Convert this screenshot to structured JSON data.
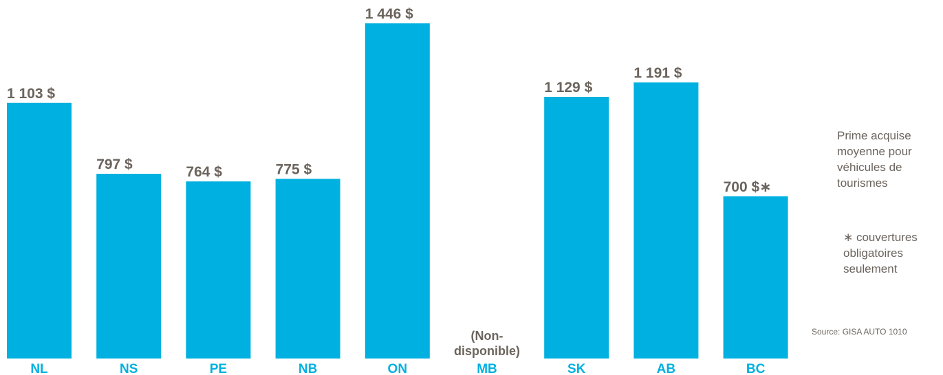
{
  "chart_data": {
    "type": "bar",
    "categories": [
      "NL",
      "NS",
      "PE",
      "NB",
      "ON",
      "MB",
      "SK",
      "AB",
      "BC"
    ],
    "values": [
      1103,
      797,
      764,
      775,
      1446,
      null,
      1129,
      1191,
      700
    ],
    "value_labels": [
      "1 103 $",
      "797 $",
      "764 $",
      "775 $",
      "1 446 $",
      "",
      "1 129 $",
      "1 191 $",
      "700 $∗"
    ],
    "missing_label": "(Non-disponible)",
    "missing_label_lines": [
      "(Non-",
      "disponible)"
    ],
    "bar_color": "#00b0e0",
    "label_color": "#6b645d",
    "ylim": [
      0,
      1500
    ],
    "grid": false,
    "legend_text": "Prime acquise moyenne pour véhicules de tourismes",
    "note": "∗ couvertures obligatoires seulement",
    "source": "Source: GISA AUTO 1010"
  }
}
